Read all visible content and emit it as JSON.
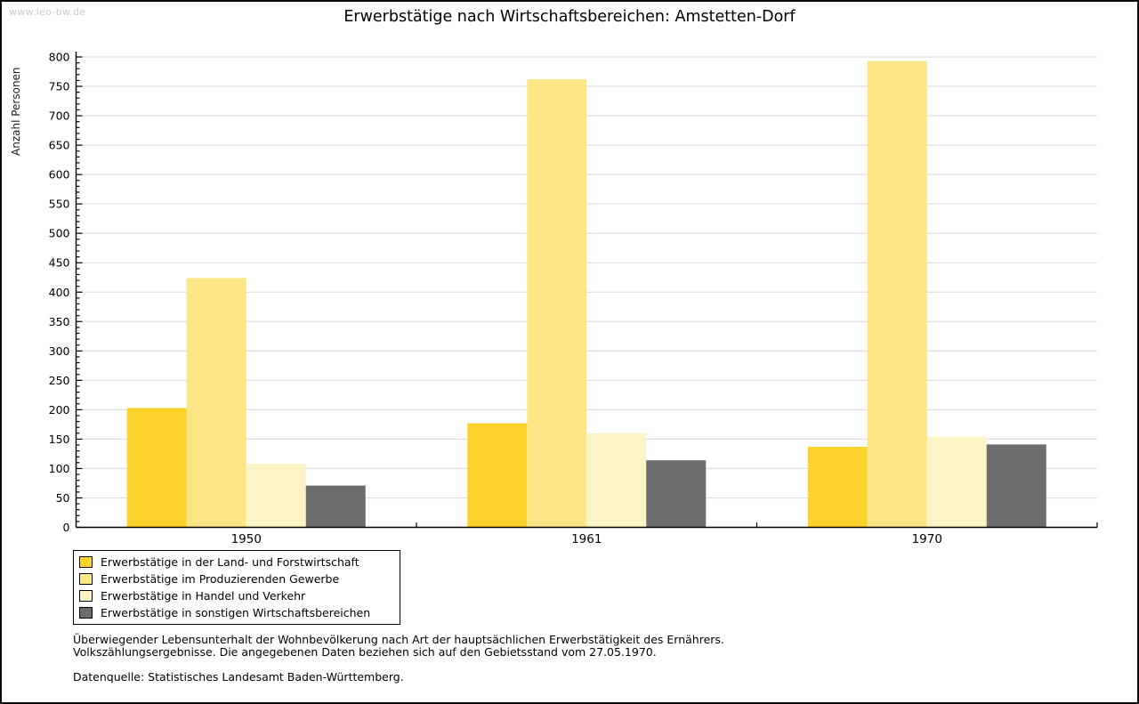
{
  "watermark": "www.leo-bw.de",
  "title": "Erwerbstätige nach Wirtschaftsbereichen: Amstetten-Dorf",
  "colors": {
    "grid": "#E0E0E0",
    "axis": "#000000",
    "watermark": "#CCCCCC",
    "series1": "#FCD32B",
    "series2": "#FCE685",
    "series3": "#FCF4C4",
    "series4": "#6D6D6D"
  },
  "chart_data": {
    "type": "bar",
    "title": "Erwerbstätige nach Wirtschaftsbereichen: Amstetten-Dorf",
    "xlabel": "",
    "ylabel": "Anzahl Personen",
    "ylim": [
      0,
      800
    ],
    "ytick_major": 50,
    "ytick_minor": 10,
    "grid": true,
    "legend_position": "bottom-left",
    "categories": [
      "1950",
      "1961",
      "1970"
    ],
    "series": [
      {
        "name": "Erwerbstätige in der Land- und Forstwirtschaft",
        "color": "#FCD32B",
        "values": [
          203,
          177,
          137
        ]
      },
      {
        "name": "Erwerbstätige im Produzierenden Gewerbe",
        "color": "#FCE685",
        "values": [
          424,
          762,
          793
        ]
      },
      {
        "name": "Erwerbstätige in Handel und Verkehr",
        "color": "#FCF4C4",
        "values": [
          108,
          160,
          154
        ]
      },
      {
        "name": "Erwerbstätige in sonstigen Wirtschaftsbereichen",
        "color": "#6D6D6D",
        "values": [
          71,
          114,
          141
        ]
      }
    ]
  },
  "footnotes": {
    "line1": "Überwiegender Lebensunterhalt der Wohnbevölkerung nach Art der hauptsächlichen Erwerbstätigkeit des Ernährers.",
    "line2": "Volkszählungsergebnisse. Die angegebenen Daten beziehen sich auf den Gebietsstand vom 27.05.1970.",
    "source": "Datenquelle: Statistisches Landesamt Baden-Württemberg."
  }
}
